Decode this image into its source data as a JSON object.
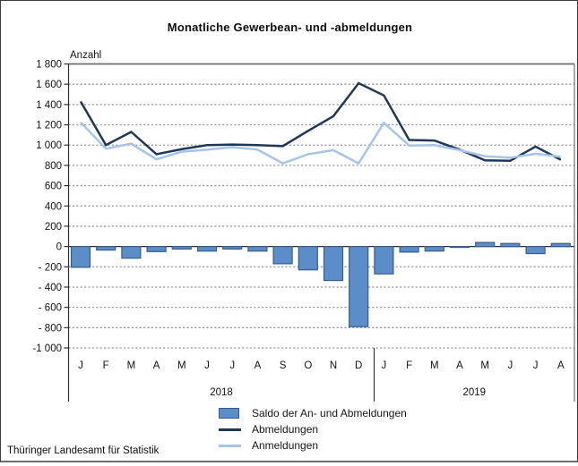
{
  "footer": "Thüringer Landesamt für Statistik",
  "chart_data": {
    "type": "combo-bar-line",
    "title": "Monatliche Gewerbean- und -abmeldungen",
    "ylabel": "Anzahl",
    "xlabel": "",
    "categories": [
      "J",
      "F",
      "M",
      "A",
      "M",
      "J",
      "J",
      "A",
      "S",
      "O",
      "N",
      "D",
      "J",
      "F",
      "M",
      "A",
      "M",
      "J",
      "J",
      "A"
    ],
    "year_groups": [
      {
        "year": "2018",
        "start": 0,
        "count": 12
      },
      {
        "year": "2019",
        "start": 12,
        "count": 8
      }
    ],
    "series": [
      {
        "name": "Saldo der An- und Abmeldungen",
        "type": "bar",
        "color": "#5B8DC9",
        "border_color": "#385D8A",
        "values": [
          -205,
          -35,
          -115,
          -50,
          -25,
          -45,
          -25,
          -45,
          -170,
          -230,
          -335,
          -790,
          -270,
          -55,
          -45,
          -5,
          40,
          30,
          -70,
          30
        ]
      },
      {
        "name": "Abmeldungen",
        "type": "line",
        "color": "#1F3858",
        "values": [
          1430,
          1000,
          1130,
          910,
          960,
          1000,
          1005,
          1000,
          990,
          1140,
          1285,
          1610,
          1490,
          1050,
          1045,
          955,
          850,
          845,
          985,
          855
        ]
      },
      {
        "name": "Anmeldungen",
        "type": "line",
        "color": "#A6C4E8",
        "values": [
          1225,
          965,
          1015,
          860,
          935,
          955,
          980,
          955,
          820,
          910,
          950,
          820,
          1220,
          995,
          1000,
          950,
          890,
          875,
          915,
          885
        ]
      }
    ],
    "ylim": [
      -1000,
      1800
    ],
    "ytick_step": 200,
    "yticks": [
      {
        "v": 1800,
        "label": "1 800"
      },
      {
        "v": 1600,
        "label": "1 600"
      },
      {
        "v": 1400,
        "label": "1 400"
      },
      {
        "v": 1200,
        "label": "1 200"
      },
      {
        "v": 1000,
        "label": "1 000"
      },
      {
        "v": 800,
        "label": "800"
      },
      {
        "v": 600,
        "label": "600"
      },
      {
        "v": 400,
        "label": "400"
      },
      {
        "v": 200,
        "label": "200"
      },
      {
        "v": 0,
        "label": "0"
      },
      {
        "v": -200,
        "label": "- 200"
      },
      {
        "v": -400,
        "label": "- 400"
      },
      {
        "v": -600,
        "label": "- 600"
      },
      {
        "v": -800,
        "label": "- 800"
      },
      {
        "v": -1000,
        "label": "-1 000"
      }
    ],
    "grid": "dashed-horizontal",
    "legend_position": "bottom-center",
    "colors": {
      "grid": "#8f8f8f",
      "axis": "#2e2e2e",
      "plot_border": "#6e6e6e",
      "text": "#111111"
    }
  }
}
